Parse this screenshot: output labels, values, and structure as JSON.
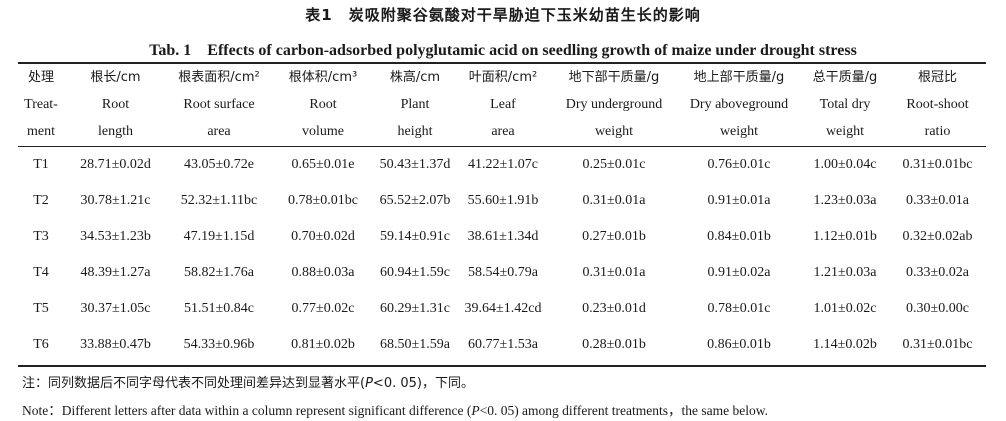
{
  "title_cn": "表1　炭吸附聚谷氨酸对干旱胁迫下玉米幼苗生长的影响",
  "title_en": "Tab. 1　Effects of carbon-adsorbed polyglutamic acid on seedling growth of maize under drought stress",
  "columns": [
    {
      "cn": "处理",
      "en1": "Treat-",
      "en2": "ment"
    },
    {
      "cn": "根长/cm",
      "en1": "Root",
      "en2": "length"
    },
    {
      "cn": "根表面积/cm²",
      "en1": "Root surface",
      "en2": "area"
    },
    {
      "cn": "根体积/cm³",
      "en1": "Root",
      "en2": "volume"
    },
    {
      "cn": "株高/cm",
      "en1": "Plant",
      "en2": "height"
    },
    {
      "cn": "叶面积/cm²",
      "en1": "Leaf",
      "en2": "area"
    },
    {
      "cn": "地下部干质量/g",
      "en1": "Dry underground",
      "en2": "weight"
    },
    {
      "cn": "地上部干质量/g",
      "en1": "Dry aboveground",
      "en2": "weight"
    },
    {
      "cn": "总干质量/g",
      "en1": "Total dry",
      "en2": "weight"
    },
    {
      "cn": "根冠比",
      "en1": "Root-shoot",
      "en2": "ratio"
    }
  ],
  "rows": [
    [
      "T1",
      "28.71±0.02d",
      "43.05±0.72e",
      "0.65±0.01e",
      "50.43±1.37d",
      "41.22±1.07c",
      "0.25±0.01c",
      "0.76±0.01c",
      "1.00±0.04c",
      "0.31±0.01bc"
    ],
    [
      "T2",
      "30.78±1.21c",
      "52.32±1.11bc",
      "0.78±0.01bc",
      "65.52±2.07b",
      "55.60±1.91b",
      "0.31±0.01a",
      "0.91±0.01a",
      "1.23±0.03a",
      "0.33±0.01a"
    ],
    [
      "T3",
      "34.53±1.23b",
      "47.19±1.15d",
      "0.70±0.02d",
      "59.14±0.91c",
      "38.61±1.34d",
      "0.27±0.01b",
      "0.84±0.01b",
      "1.12±0.01b",
      "0.32±0.02ab"
    ],
    [
      "T4",
      "48.39±1.27a",
      "58.82±1.76a",
      "0.88±0.03a",
      "60.94±1.59c",
      "58.54±0.79a",
      "0.31±0.01a",
      "0.91±0.02a",
      "1.21±0.03a",
      "0.33±0.02a"
    ],
    [
      "T5",
      "30.37±1.05c",
      "51.51±0.84c",
      "0.77±0.02c",
      "60.29±1.31c",
      "39.64±1.42cd",
      "0.23±0.01d",
      "0.78±0.01c",
      "1.01±0.02c",
      "0.30±0.00c"
    ],
    [
      "T6",
      "33.88±0.47b",
      "54.33±0.96b",
      "0.81±0.02b",
      "68.50±1.59a",
      "60.77±1.53a",
      "0.28±0.01b",
      "0.86±0.01b",
      "1.14±0.02b",
      "0.31±0.01bc"
    ]
  ],
  "note_cn_prefix": "注：同列数据后不同字母代表不同处理间差异达到显著水平(",
  "note_cn_p": "P",
  "note_cn_suffix": "<0. 05)，下同。",
  "note_en_prefix": "Note：Different letters after data within a column represent significant difference (",
  "note_en_p": "P",
  "note_en_suffix": "<0. 05) among different treatments，the same below."
}
